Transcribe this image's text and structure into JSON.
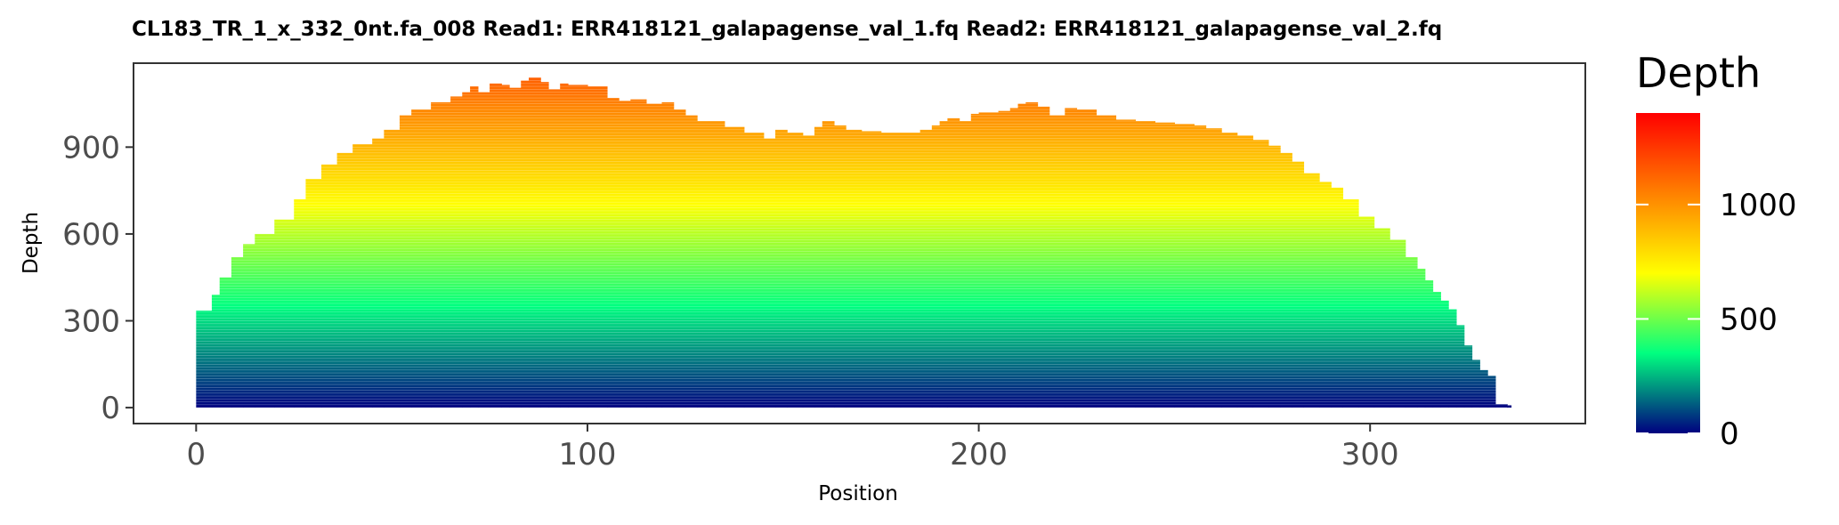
{
  "chart_data": {
    "type": "bar",
    "title": "CL183_TR_1_x_332_0nt.fa_008   Read1: ERR418121_galapagense_val_1.fq   Read2: ERR418121_galapagense_val_2.fq",
    "xlabel": "Position",
    "ylabel": "Depth",
    "xlim": [
      -16,
      355
    ],
    "ylim": [
      -55,
      1190
    ],
    "x_ticks": [
      "0",
      "100",
      "200",
      "300"
    ],
    "y_ticks": [
      "0",
      "300",
      "600",
      "900"
    ],
    "grid": false,
    "legend": {
      "title": "Depth",
      "position": "right",
      "min": 0,
      "max": 1400,
      "ticks": [
        "0",
        "500",
        "1000"
      ],
      "colors": [
        "#000080",
        "#00ff80",
        "#ffff00",
        "#ff8000",
        "#ff0000"
      ]
    },
    "x": [
      0,
      4,
      6,
      9,
      12,
      15,
      20,
      25,
      28,
      32,
      36,
      40,
      45,
      48,
      52,
      55,
      60,
      65,
      68,
      70,
      72,
      75,
      78,
      80,
      83,
      85,
      88,
      90,
      93,
      95,
      100,
      105,
      108,
      111,
      115,
      119,
      122,
      125,
      128,
      131,
      135,
      140,
      145,
      148,
      151,
      155,
      158,
      160,
      163,
      166,
      170,
      175,
      180,
      185,
      188,
      190,
      192,
      195,
      198,
      200,
      205,
      208,
      210,
      212,
      215,
      218,
      222,
      225,
      230,
      235,
      240,
      245,
      250,
      255,
      258,
      262,
      266,
      270,
      274,
      277,
      280,
      283,
      287,
      290,
      293,
      297,
      301,
      305,
      309,
      312,
      314,
      316,
      318,
      320,
      322,
      324,
      326,
      328,
      330,
      332,
      335
    ],
    "values": [
      335,
      390,
      450,
      520,
      565,
      600,
      650,
      720,
      790,
      840,
      880,
      910,
      930,
      960,
      1010,
      1030,
      1055,
      1075,
      1090,
      1110,
      1090,
      1120,
      1115,
      1105,
      1130,
      1140,
      1125,
      1100,
      1120,
      1115,
      1110,
      1070,
      1060,
      1065,
      1050,
      1055,
      1030,
      1010,
      990,
      990,
      970,
      950,
      930,
      960,
      950,
      940,
      970,
      990,
      975,
      960,
      955,
      950,
      950,
      960,
      975,
      990,
      1000,
      990,
      1015,
      1020,
      1025,
      1035,
      1050,
      1055,
      1040,
      1010,
      1035,
      1030,
      1010,
      995,
      990,
      985,
      980,
      975,
      965,
      950,
      940,
      925,
      905,
      880,
      850,
      810,
      780,
      760,
      720,
      660,
      620,
      580,
      520,
      480,
      440,
      400,
      370,
      340,
      285,
      215,
      165,
      130,
      110,
      12,
      8
    ]
  }
}
